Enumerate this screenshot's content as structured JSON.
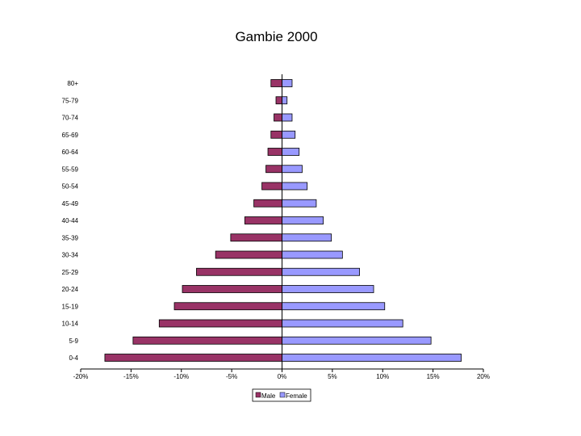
{
  "chart_data": {
    "type": "bar",
    "orientation": "horizontal",
    "title": "Gambie 2000",
    "categories": [
      "0-4",
      "5-9",
      "10-14",
      "15-19",
      "20-24",
      "25-29",
      "30-34",
      "35-39",
      "40-44",
      "45-49",
      "50-54",
      "55-59",
      "60-64",
      "65-69",
      "70-74",
      "75-79",
      "80+"
    ],
    "series": [
      {
        "name": "Male",
        "color": "#993366",
        "values": [
          -17.6,
          -14.8,
          -12.2,
          -10.7,
          -9.9,
          -8.5,
          -6.6,
          -5.1,
          -3.7,
          -2.8,
          -2.0,
          -1.6,
          -1.4,
          -1.1,
          -0.8,
          -0.6,
          -1.1
        ]
      },
      {
        "name": "Female",
        "color": "#9999ff",
        "values": [
          17.8,
          14.8,
          12.0,
          10.2,
          9.1,
          7.7,
          6.0,
          4.9,
          4.1,
          3.4,
          2.5,
          2.0,
          1.7,
          1.3,
          1.0,
          0.5,
          1.0
        ]
      }
    ],
    "xlim": [
      -20,
      20
    ],
    "xticks": [
      -20,
      -15,
      -10,
      -5,
      0,
      5,
      10,
      15,
      20
    ],
    "xtick_labels": [
      "-20%",
      "-15%",
      "-10%",
      "-5%",
      "0%",
      "5%",
      "10%",
      "15%",
      "20%"
    ],
    "grid": false,
    "legend_position": "bottom"
  }
}
